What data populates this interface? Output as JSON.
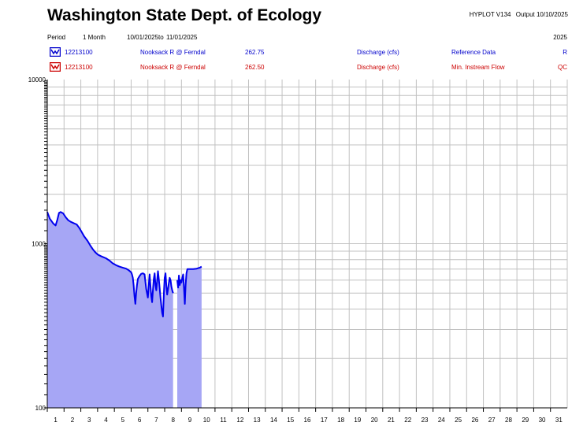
{
  "header": {
    "title": "Washington State Dept. of Ecology",
    "program": "HYPLOT V134",
    "output": "Output 10/10/2025",
    "period_label": "Period",
    "period_length": "1 Month",
    "period_start": "10/01/2025",
    "period_to": "to",
    "period_end": "11/01/2025",
    "year": "2025"
  },
  "legend": [
    {
      "site": "12213100",
      "name": "Nooksack R @ Ferndal",
      "value": "262.75",
      "param": "Discharge (cfs)",
      "dataset": "Reference Data",
      "code": "R",
      "color": "#0000cc",
      "icon": "hydrograph-icon"
    },
    {
      "site": "12213100",
      "name": "Nooksack R @ Ferndal",
      "value": "262.50",
      "param": "Discharge (cfs)",
      "dataset": "Min. Instream Flow",
      "code": "QC",
      "color": "#cc0000",
      "icon": "hydrograph-icon"
    }
  ],
  "colors": {
    "series_line": "#0000ee",
    "series_fill": "#a6a6f5",
    "grid": "#c0c0c0"
  },
  "chart_data": {
    "type": "area",
    "title": "",
    "xlabel": "",
    "ylabel": "",
    "y_scale": "log",
    "ylim": [
      100,
      10000
    ],
    "xlim": [
      1,
      32
    ],
    "y_tick_labels": [
      "100",
      "1000",
      "10000"
    ],
    "x_tick_labels": [
      "1",
      "2",
      "3",
      "4",
      "5",
      "6",
      "7",
      "8",
      "9",
      "10",
      "11",
      "12",
      "13",
      "14",
      "15",
      "16",
      "17",
      "18",
      "19",
      "20",
      "21",
      "22",
      "23",
      "24",
      "25",
      "26",
      "27",
      "28",
      "29",
      "30",
      "31"
    ],
    "grid": true,
    "series": [
      {
        "name": "Reference Data",
        "gaps": [
          [
            8.55,
            8.75
          ]
        ],
        "points": [
          [
            1.0,
            1560
          ],
          [
            1.15,
            1420
          ],
          [
            1.35,
            1330
          ],
          [
            1.5,
            1290
          ],
          [
            1.6,
            1400
          ],
          [
            1.7,
            1540
          ],
          [
            1.8,
            1560
          ],
          [
            1.95,
            1530
          ],
          [
            2.1,
            1450
          ],
          [
            2.25,
            1390
          ],
          [
            2.4,
            1360
          ],
          [
            2.6,
            1330
          ],
          [
            2.75,
            1310
          ],
          [
            2.9,
            1250
          ],
          [
            3.05,
            1180
          ],
          [
            3.2,
            1110
          ],
          [
            3.4,
            1040
          ],
          [
            3.55,
            980
          ],
          [
            3.7,
            930
          ],
          [
            3.85,
            890
          ],
          [
            4.0,
            860
          ],
          [
            4.2,
            840
          ],
          [
            4.5,
            815
          ],
          [
            4.7,
            790
          ],
          [
            4.9,
            760
          ],
          [
            5.1,
            740
          ],
          [
            5.3,
            725
          ],
          [
            5.5,
            715
          ],
          [
            5.7,
            705
          ],
          [
            5.85,
            690
          ],
          [
            6.0,
            670
          ],
          [
            6.05,
            650
          ],
          [
            6.1,
            620
          ],
          [
            6.15,
            560
          ],
          [
            6.2,
            480
          ],
          [
            6.25,
            430
          ],
          [
            6.3,
            500
          ],
          [
            6.35,
            560
          ],
          [
            6.4,
            610
          ],
          [
            6.5,
            635
          ],
          [
            6.6,
            655
          ],
          [
            6.7,
            660
          ],
          [
            6.8,
            650
          ],
          [
            6.9,
            530
          ],
          [
            7.0,
            470
          ],
          [
            7.05,
            560
          ],
          [
            7.1,
            650
          ],
          [
            7.15,
            560
          ],
          [
            7.2,
            480
          ],
          [
            7.25,
            440
          ],
          [
            7.3,
            520
          ],
          [
            7.35,
            610
          ],
          [
            7.4,
            660
          ],
          [
            7.45,
            560
          ],
          [
            7.5,
            520
          ],
          [
            7.55,
            600
          ],
          [
            7.6,
            680
          ],
          [
            7.65,
            610
          ],
          [
            7.7,
            540
          ],
          [
            7.75,
            470
          ],
          [
            7.8,
            420
          ],
          [
            7.85,
            380
          ],
          [
            7.9,
            360
          ],
          [
            7.95,
            500
          ],
          [
            8.0,
            620
          ],
          [
            8.05,
            660
          ],
          [
            8.1,
            550
          ],
          [
            8.15,
            490
          ],
          [
            8.2,
            530
          ],
          [
            8.25,
            580
          ],
          [
            8.3,
            620
          ],
          [
            8.35,
            600
          ],
          [
            8.4,
            550
          ],
          [
            8.45,
            520
          ],
          [
            8.5,
            500
          ],
          [
            8.75,
            600
          ],
          [
            8.8,
            540
          ],
          [
            8.85,
            640
          ],
          [
            8.9,
            560
          ],
          [
            8.95,
            600
          ],
          [
            9.0,
            580
          ],
          [
            9.05,
            620
          ],
          [
            9.1,
            650
          ],
          [
            9.15,
            540
          ],
          [
            9.2,
            430
          ],
          [
            9.25,
            560
          ],
          [
            9.3,
            660
          ],
          [
            9.35,
            700
          ],
          [
            9.5,
            700
          ],
          [
            9.7,
            700
          ],
          [
            9.9,
            705
          ],
          [
            10.1,
            715
          ],
          [
            10.2,
            725
          ]
        ]
      }
    ]
  }
}
